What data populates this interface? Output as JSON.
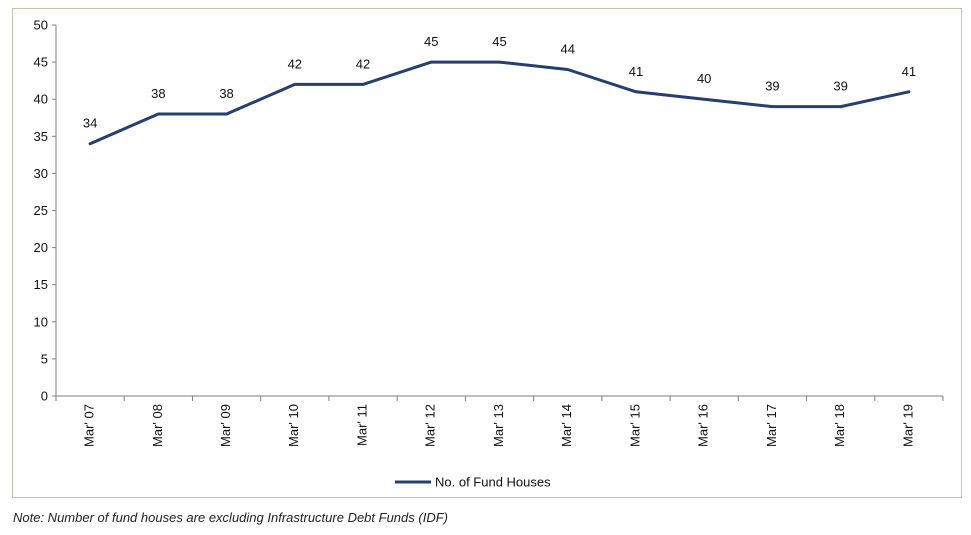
{
  "chart_data": {
    "type": "line",
    "categories": [
      "Mar' 07",
      "Mar' 08",
      "Mar' 09",
      "Mar' 10",
      "Mar' 11",
      "Mar' 12",
      "Mar' 13",
      "Mar' 14",
      "Mar' 15",
      "Mar' 16",
      "Mar' 17",
      "Mar' 18",
      "Mar' 19"
    ],
    "series": [
      {
        "name": "No. of Fund Houses",
        "values": [
          34,
          38,
          38,
          42,
          42,
          45,
          45,
          44,
          41,
          40,
          39,
          39,
          41
        ],
        "color": "#243f73"
      }
    ],
    "ylim": [
      0,
      50
    ],
    "yticks": [
      0,
      5,
      10,
      15,
      20,
      25,
      30,
      35,
      40,
      45,
      50
    ],
    "grid": false,
    "data_labels": true,
    "legend_position": "bottom",
    "title": "",
    "xlabel": "",
    "ylabel": ""
  },
  "note": "Note: Number of fund houses are excluding Infrastructure Debt Funds (IDF)",
  "colors": {
    "line": "#243f73",
    "axis": "#7f7f7f",
    "frame": "#c9c0a8"
  }
}
